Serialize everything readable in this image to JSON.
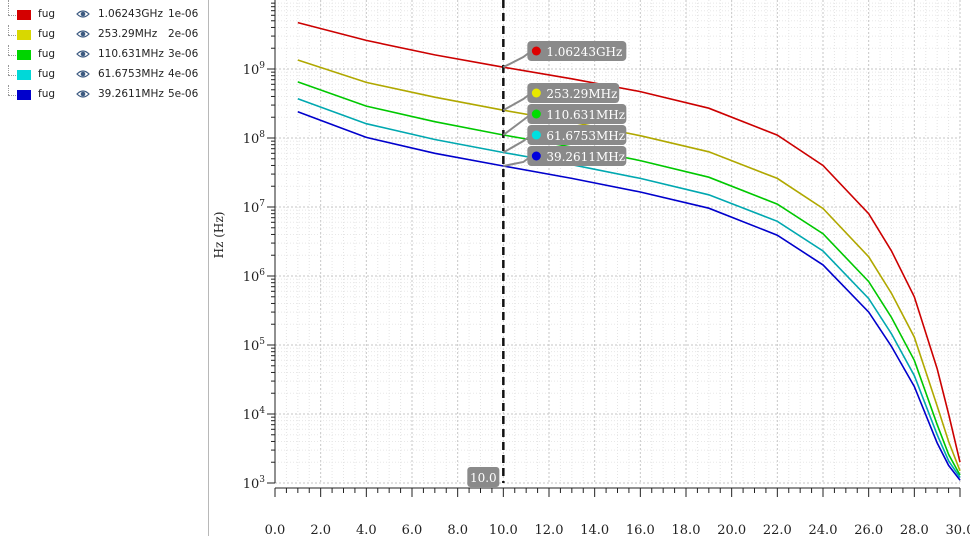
{
  "legend": {
    "rows": [
      {
        "name": "fug",
        "value": "1.06243GHz",
        "param": "1e-06",
        "color": "#d40000"
      },
      {
        "name": "fug",
        "value": "253.29MHz",
        "param": "2e-06",
        "color": "#d8d800"
      },
      {
        "name": "fug",
        "value": "110.631MHz",
        "param": "3e-06",
        "color": "#00d400"
      },
      {
        "name": "fug",
        "value": "61.6753MHz",
        "param": "4e-06",
        "color": "#00d8d8"
      },
      {
        "name": "fug",
        "value": "39.2611MHz",
        "param": "5e-06",
        "color": "#0000cc"
      }
    ],
    "eye_icon": "eye-icon"
  },
  "cursor": {
    "x": 10.0,
    "label": "10.0"
  },
  "chart_data": {
    "type": "line",
    "ylabel": "Hz (Hz)",
    "xlabel": "",
    "yscale": "log",
    "xlim": [
      0,
      30
    ],
    "ylim": [
      1000,
      10000000000
    ],
    "xticks": [
      "0.0",
      "2.0",
      "4.0",
      "6.0",
      "8.0",
      "10.0",
      "12.0",
      "14.0",
      "16.0",
      "18.0",
      "20.0",
      "22.0",
      "24.0",
      "26.0",
      "28.0",
      "30.0"
    ],
    "yticks": [
      {
        "base": "10",
        "exp": "3"
      },
      {
        "base": "10",
        "exp": "4"
      },
      {
        "base": "10",
        "exp": "5"
      },
      {
        "base": "10",
        "exp": "6"
      },
      {
        "base": "10",
        "exp": "7"
      },
      {
        "base": "10",
        "exp": "8"
      },
      {
        "base": "10",
        "exp": "9"
      }
    ],
    "grid": true,
    "x": [
      1,
      4,
      7,
      10,
      13,
      16,
      19,
      22,
      24,
      26,
      27,
      28,
      29,
      29.5,
      30
    ],
    "series": [
      {
        "name": "fug",
        "param": "1e-06",
        "color": "#cc0000",
        "values": [
          4700000000,
          2600000000,
          1600000000,
          1062430000,
          720000000,
          470000000,
          270000000,
          110000000,
          40000000,
          8000000,
          2300000,
          500000,
          45000,
          10000,
          2000
        ]
      },
      {
        "name": "fug",
        "param": "2e-06",
        "color": "#b0a800",
        "values": [
          1350000000,
          640000000,
          390000000,
          253290000,
          170000000,
          108000000,
          63000000,
          26000000,
          9500000,
          1900000,
          560000,
          130000,
          13000,
          4000,
          1500
        ]
      },
      {
        "name": "fug",
        "param": "3e-06",
        "color": "#00c800",
        "values": [
          650000000,
          290000000,
          172000000,
          110631000,
          74000000,
          47000000,
          27000000,
          11000000,
          4100000,
          830000,
          250000,
          60000,
          7000,
          2600,
          1300
        ]
      },
      {
        "name": "fug",
        "param": "4e-06",
        "color": "#00a8b0",
        "values": [
          370000000,
          161000000,
          95000000,
          61675300,
          41000000,
          26000000,
          15000000,
          6200000,
          2300000,
          470000,
          145000,
          36000,
          5000,
          2100,
          1200
        ]
      },
      {
        "name": "fug",
        "param": "5e-06",
        "color": "#0000cc",
        "values": [
          240000000,
          102000000,
          60000000,
          39261100,
          26000000,
          16500000,
          9600000,
          3900000,
          1450000,
          300000,
          95000,
          25000,
          3800,
          1800,
          1100
        ]
      }
    ],
    "markers": [
      {
        "label": "1.06243GHz",
        "value": 1062430000,
        "dot_color": "#dd0000"
      },
      {
        "label": "253.29MHz",
        "value": 253290000,
        "dot_color": "#e8e800"
      },
      {
        "label": "110.631MHz",
        "value": 110631000,
        "dot_color": "#00dd00"
      },
      {
        "label": "61.6753MHz",
        "value": 61675300,
        "dot_color": "#00e0e0"
      },
      {
        "label": "39.2611MHz",
        "value": 39261100,
        "dot_color": "#0000dd"
      }
    ]
  }
}
